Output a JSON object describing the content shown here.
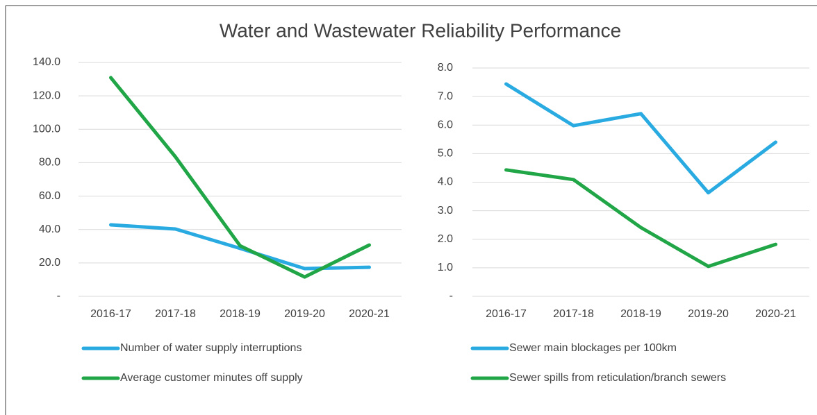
{
  "title": "Water and Wastewater Reliability Performance",
  "chart_data": [
    {
      "type": "line",
      "categories": [
        "2016-17",
        "2017-18",
        "2018-19",
        "2019-20",
        "2020-21"
      ],
      "series": [
        {
          "name": "Number of water supply interruptions",
          "color": "#29abe2",
          "values": [
            42.8,
            40.3,
            28.7,
            16.6,
            17.4
          ]
        },
        {
          "name": "Average customer minutes off supply",
          "color": "#21a647",
          "values": [
            130.9,
            83.5,
            30.3,
            11.6,
            30.7
          ]
        }
      ],
      "ylim": [
        0,
        140
      ],
      "yticks": [
        {
          "value": 0,
          "label": "-"
        },
        {
          "value": 20,
          "label": "20.0"
        },
        {
          "value": 40,
          "label": "40.0"
        },
        {
          "value": 60,
          "label": "60.0"
        },
        {
          "value": 80,
          "label": "80.0"
        },
        {
          "value": 100,
          "label": "100.0"
        },
        {
          "value": 120,
          "label": "120.0"
        },
        {
          "value": 140,
          "label": "140.0"
        }
      ],
      "grid": true
    },
    {
      "type": "line",
      "categories": [
        "2016-17",
        "2017-18",
        "2018-19",
        "2019-20",
        "2020-21"
      ],
      "series": [
        {
          "name": "Sewer main blockages per 100km",
          "color": "#29abe2",
          "values": [
            7.44,
            5.98,
            6.4,
            3.63,
            5.4
          ]
        },
        {
          "name": "Sewer spills from reticulation/branch sewers",
          "color": "#21a647",
          "values": [
            4.43,
            4.09,
            2.41,
            1.05,
            1.82
          ]
        }
      ],
      "ylim": [
        0,
        8
      ],
      "yticks": [
        {
          "value": 0,
          "label": "-"
        },
        {
          "value": 1,
          "label": "1.0"
        },
        {
          "value": 2,
          "label": "2.0"
        },
        {
          "value": 3,
          "label": "3.0"
        },
        {
          "value": 4,
          "label": "4.0"
        },
        {
          "value": 5,
          "label": "5.0"
        },
        {
          "value": 6,
          "label": "6.0"
        },
        {
          "value": 7,
          "label": "7.0"
        },
        {
          "value": 8,
          "label": "8.0"
        }
      ],
      "grid": true
    }
  ]
}
